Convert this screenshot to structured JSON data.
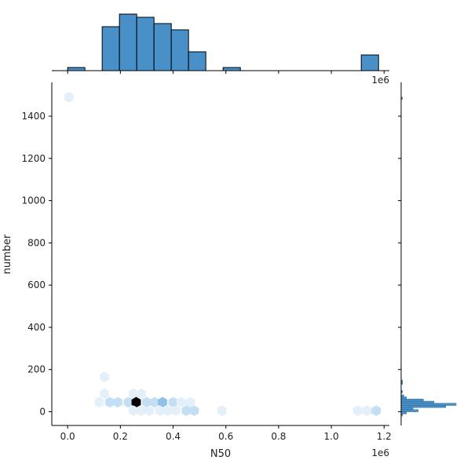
{
  "chart_data": {
    "type": "hexbin_joint",
    "xlabel": "N50",
    "ylabel": "number",
    "x_offset_label": "1e6",
    "top_hist_offset_label": "1e6",
    "xlim": [
      -0.06,
      1.22
    ],
    "ylim": [
      -65,
      1560
    ],
    "xticks": [
      0.0,
      0.2,
      0.4,
      0.6,
      0.8,
      1.0,
      1.2
    ],
    "xtick_labels": [
      "0.0",
      "0.2",
      "0.4",
      "0.6",
      "0.8",
      "1.0",
      "1.2"
    ],
    "yticks": [
      0,
      200,
      400,
      600,
      800,
      1000,
      1200,
      1400
    ],
    "ytick_labels": [
      "0",
      "200",
      "400",
      "600",
      "800",
      "1000",
      "1200",
      "1400"
    ],
    "grid": false,
    "colors": {
      "hist_fill": "#4a90c8",
      "hist_edge": "#000000",
      "axis": "#000000",
      "hex_scale": [
        "#e3eff9",
        "#c4def3",
        "#8fc1e8",
        "#5aa2dd",
        "#3a8fd6",
        "#000000"
      ]
    },
    "hexbins": [
      {
        "x": 0.005,
        "y": 1490,
        "count": 1
      },
      {
        "x": 0.14,
        "y": 165,
        "count": 1
      },
      {
        "x": 0.14,
        "y": 85,
        "count": 1
      },
      {
        "x": 0.25,
        "y": 85,
        "count": 1
      },
      {
        "x": 0.28,
        "y": 85,
        "count": 1
      },
      {
        "x": 0.12,
        "y": 45,
        "count": 2
      },
      {
        "x": 0.16,
        "y": 45,
        "count": 4
      },
      {
        "x": 0.19,
        "y": 45,
        "count": 4
      },
      {
        "x": 0.23,
        "y": 45,
        "count": 4
      },
      {
        "x": 0.26,
        "y": 45,
        "count": 9
      },
      {
        "x": 0.3,
        "y": 45,
        "count": 3
      },
      {
        "x": 0.33,
        "y": 45,
        "count": 4
      },
      {
        "x": 0.36,
        "y": 45,
        "count": 5
      },
      {
        "x": 0.4,
        "y": 45,
        "count": 4
      },
      {
        "x": 0.43,
        "y": 45,
        "count": 1
      },
      {
        "x": 0.465,
        "y": 45,
        "count": 2
      },
      {
        "x": 0.25,
        "y": 5,
        "count": 1
      },
      {
        "x": 0.28,
        "y": 5,
        "count": 1
      },
      {
        "x": 0.31,
        "y": 5,
        "count": 1
      },
      {
        "x": 0.35,
        "y": 5,
        "count": 2
      },
      {
        "x": 0.38,
        "y": 5,
        "count": 1
      },
      {
        "x": 0.41,
        "y": 5,
        "count": 2
      },
      {
        "x": 0.45,
        "y": 5,
        "count": 3
      },
      {
        "x": 0.48,
        "y": 5,
        "count": 3
      },
      {
        "x": 0.585,
        "y": 5,
        "count": 1
      },
      {
        "x": 1.1,
        "y": 5,
        "count": 1
      },
      {
        "x": 1.135,
        "y": 5,
        "count": 1
      },
      {
        "x": 1.17,
        "y": 5,
        "count": 3
      }
    ],
    "top_histogram": {
      "bin_edges": [
        0.0,
        0.0655,
        0.131,
        0.1965,
        0.262,
        0.3275,
        0.393,
        0.4585,
        0.524,
        0.5895,
        0.655,
        0.7205,
        0.786,
        0.8515,
        0.917,
        0.9825,
        1.048,
        1.1135,
        1.179
      ],
      "counts": [
        1,
        0,
        14,
        18,
        17,
        15,
        13,
        6,
        0,
        1,
        0,
        0,
        0,
        0,
        0,
        0,
        0,
        5
      ]
    },
    "right_histogram": {
      "bin_edges": [
        -20,
        -10,
        0,
        10,
        20,
        30,
        40,
        50,
        60,
        70,
        80,
        90,
        100,
        110,
        120,
        130,
        140,
        150
      ],
      "counts": [
        1,
        4,
        13,
        9,
        34,
        42,
        25,
        17,
        4,
        2,
        0,
        1,
        0,
        0,
        0,
        1,
        1
      ],
      "extra_bins": [
        {
          "low": 1480,
          "high": 1490,
          "count": 1
        }
      ]
    }
  }
}
